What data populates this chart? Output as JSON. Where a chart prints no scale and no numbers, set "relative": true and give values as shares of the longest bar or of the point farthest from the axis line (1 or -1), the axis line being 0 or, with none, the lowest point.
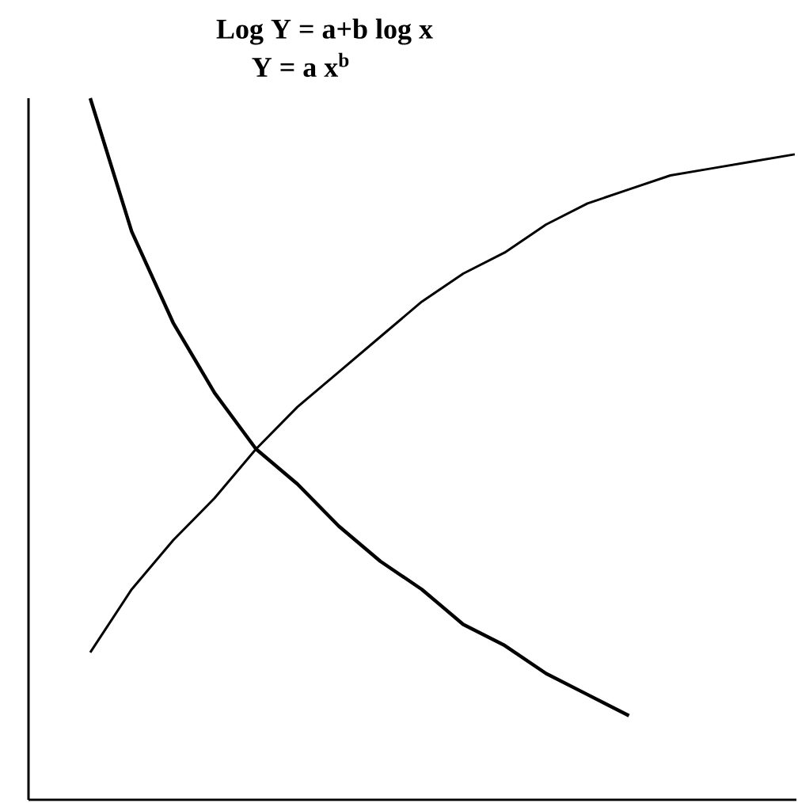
{
  "chart_data": {
    "type": "line",
    "title": "Log Y = a+b log x",
    "subtitle": "Y = a x$^{b}$",
    "relative": true,
    "tick_labels": false,
    "categories": [
      null,
      null,
      null,
      null,
      null,
      null,
      null,
      null,
      null,
      null,
      null,
      null,
      null,
      null,
      null,
      null,
      null,
      null
    ],
    "series": [
      {
        "color": "#000000",
        "values": [
          1.0,
          0.81,
          0.68,
          0.58,
          0.5,
          0.45,
          0.39,
          0.34,
          0.3,
          0.25,
          0.22,
          0.18,
          0.15,
          0.12,
          null,
          null,
          null,
          null
        ]
      },
      {
        "color": "#000000",
        "values": [
          0.21,
          0.3,
          0.37,
          0.43,
          0.5,
          0.56,
          0.61,
          0.66,
          0.71,
          0.75,
          0.78,
          0.82,
          0.85,
          0.87,
          0.89,
          0.9,
          0.91,
          0.92
        ]
      }
    ]
  }
}
